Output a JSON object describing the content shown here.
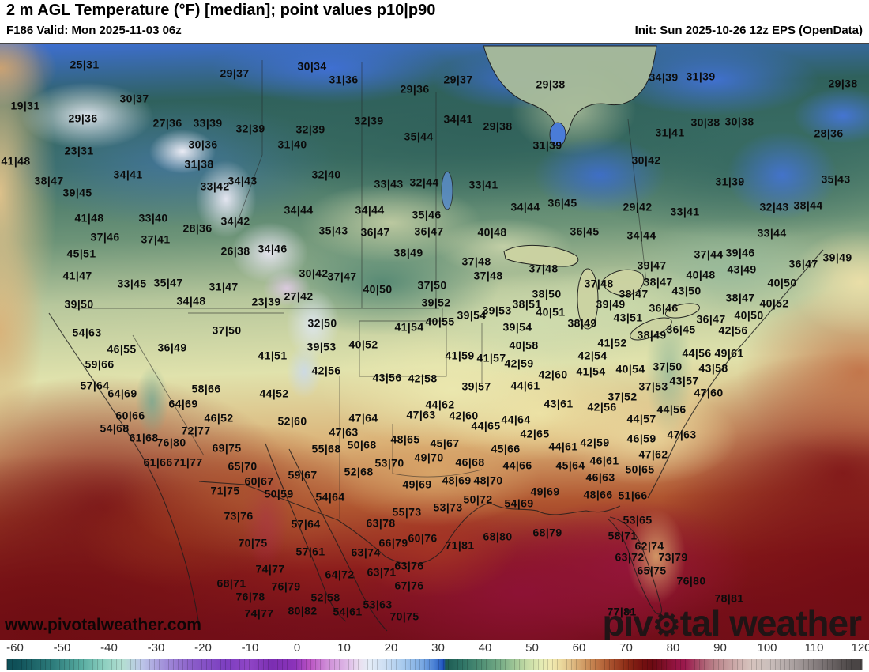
{
  "header": {
    "title": "2 m AGL Temperature (°F) [median]; point values p10|p90",
    "valid": "F186 Valid: Mon 2025-11-03 06z",
    "init": "Init: Sun 2025-10-26 12z EPS (OpenData)"
  },
  "watermark": "www.pivotalweather.com",
  "logo": {
    "pre": "piv",
    "gear": "⚙",
    "post": "tal weather"
  },
  "colorbar": {
    "unit": "°F",
    "ticks": [
      -60,
      -50,
      -40,
      -30,
      -20,
      -10,
      0,
      10,
      20,
      30,
      40,
      50,
      60,
      70,
      80,
      90,
      100,
      110,
      120
    ],
    "domain": [
      -62,
      122
    ],
    "stops": [
      [
        -60,
        "#0f5058"
      ],
      [
        -52,
        "#2e7d7c"
      ],
      [
        -46,
        "#57aba0"
      ],
      [
        -41,
        "#8ed0c0"
      ],
      [
        -37,
        "#b4ded2"
      ],
      [
        -33,
        "#bcc6e8"
      ],
      [
        -28,
        "#a18ed9"
      ],
      [
        -22,
        "#8a5cc9"
      ],
      [
        -15,
        "#7c3ec0"
      ],
      [
        -10,
        "#9046c6"
      ],
      [
        -5,
        "#7b2eb2"
      ],
      [
        0,
        "#8c33ba"
      ],
      [
        3,
        "#b951c2"
      ],
      [
        7,
        "#cf8fd8"
      ],
      [
        11,
        "#ddb7e6"
      ],
      [
        14,
        "#e9e0f0"
      ],
      [
        16,
        "#e3ecf7"
      ],
      [
        19,
        "#cfe0f3"
      ],
      [
        23,
        "#a9cbee"
      ],
      [
        27,
        "#7fade4"
      ],
      [
        30,
        "#4a80d4"
      ],
      [
        32,
        "#1c50ba"
      ],
      [
        32.4,
        "#1d5a52"
      ],
      [
        36,
        "#2f7466"
      ],
      [
        40,
        "#4e8e74"
      ],
      [
        44,
        "#74aa85"
      ],
      [
        47,
        "#9cc495"
      ],
      [
        50,
        "#c6dca6"
      ],
      [
        53,
        "#e4ebb3"
      ],
      [
        55,
        "#f0eab1"
      ],
      [
        57,
        "#ecdb9f"
      ],
      [
        59,
        "#e2c48c"
      ],
      [
        61,
        "#d7aa72"
      ],
      [
        63,
        "#cb8f5a"
      ],
      [
        65,
        "#bf7646"
      ],
      [
        67,
        "#b05d35"
      ],
      [
        69,
        "#a04526"
      ],
      [
        71,
        "#903018"
      ],
      [
        73,
        "#801d12"
      ],
      [
        75,
        "#730f10"
      ],
      [
        77,
        "#6b0a12"
      ],
      [
        79,
        "#7a0e24"
      ],
      [
        82,
        "#951443"
      ],
      [
        84,
        "#9b1a4e"
      ],
      [
        87,
        "#a8506a"
      ],
      [
        90,
        "#b87f87"
      ],
      [
        94,
        "#c9a4a4"
      ],
      [
        98,
        "#d6c3bd"
      ],
      [
        102,
        "#cbbfbc"
      ],
      [
        106,
        "#b3a9a8"
      ],
      [
        110,
        "#968d8d"
      ],
      [
        114,
        "#776f70"
      ],
      [
        118,
        "#575151"
      ],
      [
        120,
        "#4a4545"
      ]
    ]
  },
  "map": {
    "value_format": "p10|p90",
    "points": [
      [
        107,
        26,
        "25|31"
      ],
      [
        297,
        37,
        "29|37"
      ],
      [
        32,
        78,
        "19|31"
      ],
      [
        170,
        69,
        "30|37"
      ],
      [
        105,
        94,
        "29|36"
      ],
      [
        212,
        100,
        "27|36"
      ],
      [
        263,
        100,
        "33|39"
      ],
      [
        317,
        107,
        "32|39"
      ],
      [
        257,
        127,
        "30|36"
      ],
      [
        100,
        135,
        "23|31"
      ],
      [
        252,
        152,
        "31|38"
      ],
      [
        20,
        148,
        "41|48"
      ],
      [
        62,
        173,
        "38|47"
      ],
      [
        162,
        165,
        "34|41"
      ],
      [
        272,
        180,
        "33|42"
      ],
      [
        307,
        173,
        "34|43"
      ],
      [
        98,
        188,
        "39|45"
      ],
      [
        113,
        220,
        "41|48"
      ],
      [
        194,
        220,
        "33|40"
      ],
      [
        250,
        233,
        "28|36"
      ],
      [
        298,
        224,
        "34|42"
      ],
      [
        395,
        28,
        "30|34"
      ],
      [
        435,
        45,
        "31|36"
      ],
      [
        525,
        57,
        "29|36"
      ],
      [
        580,
        45,
        "29|37"
      ],
      [
        697,
        51,
        "29|38"
      ],
      [
        467,
        97,
        "32|39"
      ],
      [
        580,
        95,
        "34|41"
      ],
      [
        630,
        104,
        "29|38"
      ],
      [
        393,
        108,
        "32|39"
      ],
      [
        370,
        127,
        "31|40"
      ],
      [
        530,
        117,
        "35|44"
      ],
      [
        693,
        128,
        "31|39"
      ],
      [
        413,
        165,
        "32|40"
      ],
      [
        492,
        177,
        "33|43"
      ],
      [
        537,
        175,
        "32|44"
      ],
      [
        612,
        178,
        "33|41"
      ],
      [
        378,
        210,
        "34|44"
      ],
      [
        468,
        210,
        "34|44"
      ],
      [
        540,
        216,
        "35|46"
      ],
      [
        422,
        236,
        "35|43"
      ],
      [
        475,
        238,
        "36|47"
      ],
      [
        543,
        237,
        "36|47"
      ],
      [
        623,
        238,
        "40|48"
      ],
      [
        665,
        206,
        "34|44"
      ],
      [
        712,
        201,
        "36|45"
      ],
      [
        740,
        237,
        "36|45"
      ],
      [
        812,
        242,
        "34|44"
      ],
      [
        840,
        42,
        "34|39"
      ],
      [
        887,
        41,
        "31|39"
      ],
      [
        1067,
        50,
        "29|38"
      ],
      [
        893,
        99,
        "30|38"
      ],
      [
        936,
        98,
        "30|38"
      ],
      [
        1049,
        113,
        "28|36"
      ],
      [
        848,
        112,
        "31|41"
      ],
      [
        818,
        147,
        "30|42"
      ],
      [
        924,
        174,
        "31|39"
      ],
      [
        1058,
        171,
        "35|43"
      ],
      [
        807,
        206,
        "29|42"
      ],
      [
        867,
        212,
        "33|41"
      ],
      [
        980,
        206,
        "32|43"
      ],
      [
        1023,
        204,
        "38|44"
      ],
      [
        977,
        239,
        "33|44"
      ],
      [
        133,
        244,
        "37|46"
      ],
      [
        197,
        247,
        "37|41"
      ],
      [
        298,
        262,
        "26|38"
      ],
      [
        345,
        259,
        "34|46"
      ],
      [
        103,
        265,
        "45|51"
      ],
      [
        98,
        293,
        "41|47"
      ],
      [
        167,
        303,
        "33|45"
      ],
      [
        213,
        302,
        "35|47"
      ],
      [
        283,
        307,
        "31|47"
      ],
      [
        242,
        325,
        "34|48"
      ],
      [
        337,
        326,
        "23|39"
      ],
      [
        100,
        329,
        "39|50"
      ],
      [
        110,
        365,
        "54|63"
      ],
      [
        154,
        386,
        "46|55"
      ],
      [
        218,
        384,
        "36|49"
      ],
      [
        287,
        362,
        "37|50"
      ],
      [
        345,
        394,
        "41|51"
      ],
      [
        126,
        405,
        "59|66"
      ],
      [
        120,
        432,
        "57|64"
      ],
      [
        155,
        442,
        "64|69"
      ],
      [
        261,
        436,
        "58|66"
      ],
      [
        347,
        442,
        "44|52"
      ],
      [
        232,
        455,
        "64|69"
      ],
      [
        165,
        470,
        "60|66"
      ],
      [
        277,
        473,
        "46|52"
      ],
      [
        370,
        477,
        "52|60"
      ],
      [
        517,
        264,
        "38|49"
      ],
      [
        603,
        275,
        "37|48"
      ],
      [
        618,
        293,
        "37|48"
      ],
      [
        688,
        284,
        "37|48"
      ],
      [
        397,
        290,
        "30|42"
      ],
      [
        433,
        294,
        "37|47"
      ],
      [
        478,
        310,
        "40|50"
      ],
      [
        547,
        305,
        "37|50"
      ],
      [
        692,
        316,
        "38|50"
      ],
      [
        378,
        319,
        "27|42"
      ],
      [
        552,
        327,
        "39|52"
      ],
      [
        667,
        329,
        "38|51"
      ],
      [
        697,
        339,
        "40|51"
      ],
      [
        629,
        337,
        "39|53"
      ],
      [
        597,
        343,
        "39|54"
      ],
      [
        408,
        353,
        "32|50"
      ],
      [
        557,
        351,
        "40|55"
      ],
      [
        407,
        383,
        "39|53"
      ],
      [
        460,
        380,
        "40|52"
      ],
      [
        518,
        358,
        "41|54"
      ],
      [
        655,
        358,
        "39|54"
      ],
      [
        663,
        381,
        "40|58"
      ],
      [
        413,
        413,
        "42|56"
      ],
      [
        582,
        394,
        "41|59"
      ],
      [
        622,
        397,
        "41|57"
      ],
      [
        657,
        404,
        "42|59"
      ],
      [
        490,
        422,
        "43|56"
      ],
      [
        535,
        423,
        "42|58"
      ],
      [
        700,
        418,
        "42|60"
      ],
      [
        603,
        433,
        "39|57"
      ],
      [
        665,
        432,
        "44|61"
      ],
      [
        460,
        473,
        "47|64"
      ],
      [
        533,
        469,
        "47|63"
      ],
      [
        557,
        456,
        "44|62"
      ],
      [
        587,
        470,
        "42|60"
      ],
      [
        653,
        475,
        "44|64"
      ],
      [
        707,
        455,
        "43|61"
      ],
      [
        615,
        483,
        "44|65"
      ],
      [
        897,
        266,
        "37|44"
      ],
      [
        937,
        264,
        "39|46"
      ],
      [
        1060,
        270,
        "39|49"
      ],
      [
        1017,
        278,
        "36|47"
      ],
      [
        939,
        285,
        "43|49"
      ],
      [
        990,
        302,
        "40|50"
      ],
      [
        825,
        280,
        "39|47"
      ],
      [
        887,
        292,
        "40|48"
      ],
      [
        833,
        301,
        "38|47"
      ],
      [
        869,
        312,
        "43|50"
      ],
      [
        758,
        303,
        "37|48"
      ],
      [
        802,
        316,
        "38|47"
      ],
      [
        937,
        321,
        "38|47"
      ],
      [
        773,
        329,
        "39|49"
      ],
      [
        840,
        334,
        "36|46"
      ],
      [
        980,
        328,
        "40|52"
      ],
      [
        948,
        343,
        "40|50"
      ],
      [
        795,
        346,
        "43|51"
      ],
      [
        737,
        353,
        "38|49"
      ],
      [
        900,
        348,
        "36|47"
      ],
      [
        928,
        362,
        "42|56"
      ],
      [
        862,
        361,
        "36|45"
      ],
      [
        825,
        368,
        "38|49"
      ],
      [
        775,
        378,
        "41|52"
      ],
      [
        750,
        394,
        "42|54"
      ],
      [
        882,
        391,
        "44|56"
      ],
      [
        923,
        391,
        "49|61"
      ],
      [
        748,
        414,
        "41|54"
      ],
      [
        798,
        411,
        "40|54"
      ],
      [
        845,
        408,
        "37|50"
      ],
      [
        903,
        410,
        "43|58"
      ],
      [
        866,
        426,
        "43|57"
      ],
      [
        827,
        433,
        "37|53"
      ],
      [
        897,
        441,
        "47|60"
      ],
      [
        788,
        446,
        "37|52"
      ],
      [
        762,
        459,
        "42|56"
      ],
      [
        850,
        462,
        "44|56"
      ],
      [
        812,
        474,
        "44|57"
      ],
      [
        145,
        486,
        "54|68"
      ],
      [
        182,
        498,
        "61|68"
      ],
      [
        217,
        504,
        "76|80"
      ],
      [
        248,
        489,
        "72|77"
      ],
      [
        287,
        511,
        "69|75"
      ],
      [
        307,
        534,
        "65|70"
      ],
      [
        328,
        553,
        "60|67"
      ],
      [
        200,
        529,
        "61|66"
      ],
      [
        238,
        529,
        "71|77"
      ],
      [
        285,
        565,
        "71|75"
      ],
      [
        353,
        569,
        "50|59"
      ],
      [
        302,
        597,
        "73|76"
      ],
      [
        320,
        631,
        "70|75"
      ],
      [
        342,
        664,
        "74|77"
      ],
      [
        293,
        682,
        "68|71"
      ],
      [
        317,
        699,
        "76|78"
      ],
      [
        328,
        720,
        "74|77"
      ],
      [
        362,
        686,
        "76|79"
      ],
      [
        435,
        491,
        "47|63"
      ],
      [
        513,
        500,
        "48|65"
      ],
      [
        563,
        505,
        "45|67"
      ],
      [
        677,
        493,
        "42|65"
      ],
      [
        413,
        512,
        "55|68"
      ],
      [
        458,
        507,
        "50|68"
      ],
      [
        640,
        512,
        "45|66"
      ],
      [
        713,
        509,
        "44|61"
      ],
      [
        493,
        530,
        "53|70"
      ],
      [
        543,
        523,
        "49|70"
      ],
      [
        595,
        529,
        "46|68"
      ],
      [
        655,
        533,
        "44|66"
      ],
      [
        722,
        533,
        "45|64"
      ],
      [
        383,
        545,
        "59|67"
      ],
      [
        454,
        541,
        "52|68"
      ],
      [
        528,
        557,
        "49|69"
      ],
      [
        578,
        552,
        "48|69"
      ],
      [
        618,
        552,
        "48|70"
      ],
      [
        690,
        566,
        "49|69"
      ],
      [
        418,
        573,
        "54|64"
      ],
      [
        605,
        576,
        "50|72"
      ],
      [
        657,
        581,
        "54|69"
      ],
      [
        515,
        592,
        "55|73"
      ],
      [
        567,
        586,
        "53|73"
      ],
      [
        387,
        607,
        "57|64"
      ],
      [
        482,
        606,
        "63|78"
      ],
      [
        630,
        623,
        "68|80"
      ],
      [
        693,
        618,
        "68|79"
      ],
      [
        498,
        631,
        "66|79"
      ],
      [
        535,
        625,
        "60|76"
      ],
      [
        582,
        634,
        "71|81"
      ],
      [
        393,
        642,
        "57|61"
      ],
      [
        463,
        643,
        "63|74"
      ],
      [
        518,
        660,
        "63|76"
      ],
      [
        430,
        671,
        "64|72"
      ],
      [
        483,
        668,
        "63|71"
      ],
      [
        518,
        685,
        "67|76"
      ],
      [
        412,
        700,
        "52|58"
      ],
      [
        478,
        709,
        "53|63"
      ],
      [
        383,
        717,
        "80|82"
      ],
      [
        440,
        718,
        "54|61"
      ],
      [
        512,
        724,
        "70|75"
      ],
      [
        753,
        504,
        "42|59"
      ],
      [
        812,
        499,
        "46|59"
      ],
      [
        863,
        494,
        "47|63"
      ],
      [
        827,
        519,
        "47|62"
      ],
      [
        765,
        527,
        "46|61"
      ],
      [
        810,
        538,
        "50|65"
      ],
      [
        760,
        548,
        "46|63"
      ],
      [
        757,
        570,
        "48|66"
      ],
      [
        801,
        571,
        "51|66"
      ],
      [
        807,
        602,
        "53|65"
      ],
      [
        788,
        622,
        "58|71"
      ],
      [
        822,
        635,
        "62|74"
      ],
      [
        797,
        649,
        "63|72"
      ],
      [
        852,
        649,
        "73|79"
      ],
      [
        825,
        666,
        "65|75"
      ],
      [
        875,
        679,
        "76|80"
      ],
      [
        923,
        701,
        "78|81"
      ],
      [
        787,
        718,
        "77|81"
      ]
    ]
  }
}
